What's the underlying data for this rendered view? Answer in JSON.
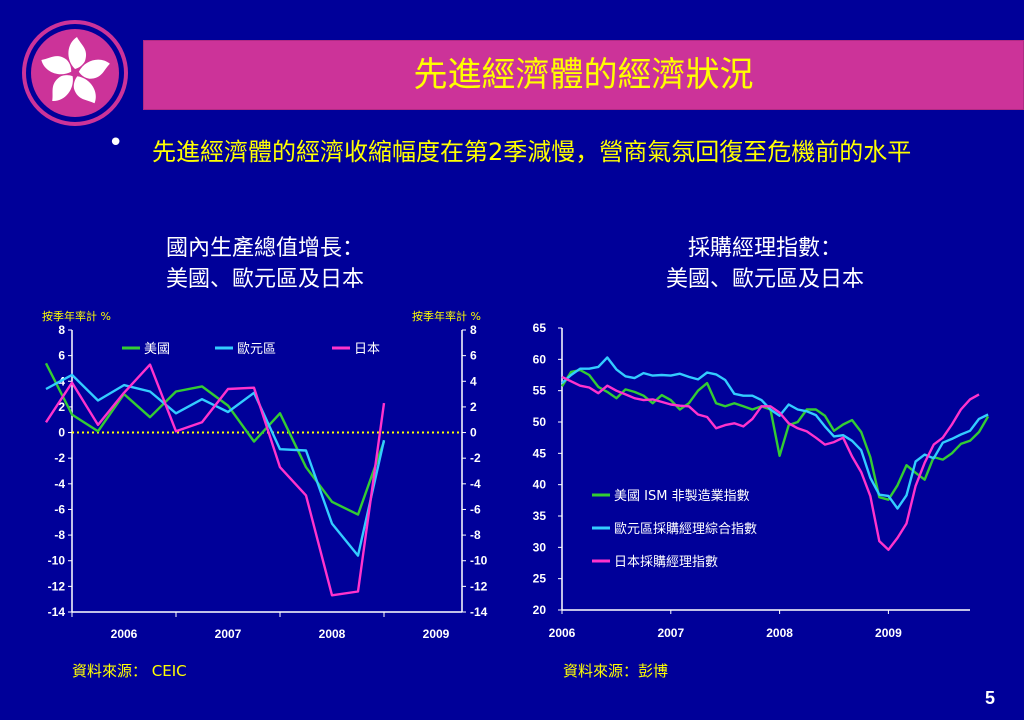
{
  "slide": {
    "title": "先進經濟體的經濟狀況",
    "bullet": "先進經濟體的經濟收縮幅度在第2季減慢，營商氣氛回復至危機前的水平",
    "page_number": "5"
  },
  "colors": {
    "background": "#000099",
    "title_bar": "#cc3399",
    "title_text": "#ffff00",
    "us": "#33cc33",
    "euro": "#33ccff",
    "japan": "#ff33cc"
  },
  "logo": {
    "icon": "bauhinia-flower-icon"
  },
  "left_chart": {
    "title_line1": "國內生產總值增長：",
    "title_line2": "美國、歐元區及日本",
    "unit_left": "按季年率計 %",
    "unit_right": "按季年率計 %",
    "source": "資料來源：  CEIC"
  },
  "right_chart": {
    "title_line1": "採購經理指數：",
    "title_line2": "美國、歐元區及日本",
    "source": "資料來源：彭博"
  },
  "chart_data": [
    {
      "type": "line",
      "x_start": 2005.75,
      "x_step": 0.25,
      "xlim": [
        2006,
        2009.75
      ],
      "xticks": [
        "2006",
        "2007",
        "2008",
        "2009"
      ],
      "ylim": [
        -14,
        8
      ],
      "yticks": [
        "8",
        "6",
        "4",
        "2",
        "0",
        "-2",
        "-4",
        "-6",
        "-8",
        "-10",
        "-12",
        "-14"
      ],
      "y2ticks": [
        "8",
        "6",
        "4",
        "2",
        "0",
        "-2",
        "-4",
        "-6",
        "-8",
        "-10",
        "-12",
        "-14"
      ],
      "zero_line": true,
      "legend_position": "top",
      "series": [
        {
          "name": "美國",
          "color": "#33cc33",
          "values": [
            5.4,
            1.4,
            0.1,
            3.0,
            1.2,
            3.2,
            3.6,
            2.1,
            -0.7,
            1.5,
            -2.7,
            -5.4,
            -6.4,
            -0.7
          ]
        },
        {
          "name": "歐元區",
          "color": "#33ccff",
          "values": [
            3.4,
            4.5,
            2.5,
            3.7,
            3.2,
            1.5,
            2.6,
            1.6,
            3.1,
            -1.3,
            -1.4,
            -7.1,
            -9.6,
            -0.6
          ]
        },
        {
          "name": "日本",
          "color": "#ff33cc",
          "values": [
            0.8,
            3.9,
            0.6,
            3.1,
            5.3,
            0.1,
            0.8,
            3.4,
            3.5,
            -2.7,
            -4.9,
            -12.7,
            -12.4,
            2.3
          ]
        }
      ]
    },
    {
      "type": "line",
      "xlim": [
        2006,
        2009.75
      ],
      "xticks": [
        "2006",
        "2007",
        "2008",
        "2009"
      ],
      "ylim": [
        20,
        65
      ],
      "yticks": [
        "65",
        "60",
        "55",
        "50",
        "45",
        "40",
        "35",
        "30",
        "25",
        "20"
      ],
      "legend_position": "lower-right",
      "series": [
        {
          "name": "美國 ISM 非製造業指數",
          "color": "#33cc33",
          "x_start": 2006.0,
          "x_step": 0.08333,
          "values": [
            55.7,
            58.0,
            58.3,
            57.5,
            55.6,
            54.8,
            53.8,
            55.2,
            54.8,
            54.2,
            53.0,
            54.3,
            53.5,
            52.0,
            53.0,
            55.0,
            56.2,
            53.0,
            52.5,
            53.0,
            52.5,
            52.0,
            52.5,
            52.0,
            44.6,
            49.5,
            50.0,
            52.0,
            52.0,
            51.0,
            48.6,
            49.6,
            50.3,
            48.4,
            44.4,
            38.0,
            37.6,
            39.9,
            43.1,
            41.9,
            40.8,
            44.4,
            44.0,
            45.0,
            46.5,
            47.0,
            48.4,
            50.9
          ]
        },
        {
          "name": "歐元區採購經理綜合指數",
          "color": "#33ccff",
          "x_start": 2006.0,
          "x_step": 0.08333,
          "values": [
            56.2,
            57.5,
            58.5,
            58.5,
            58.8,
            60.3,
            58.4,
            57.3,
            57.0,
            57.8,
            57.4,
            57.5,
            57.4,
            57.7,
            57.2,
            56.8,
            57.9,
            57.6,
            56.7,
            54.5,
            54.2,
            54.2,
            53.5,
            52.0,
            51.0,
            52.8,
            52.0,
            51.7,
            51.1,
            49.3,
            47.7,
            47.9,
            47.0,
            45.5,
            41.1,
            38.4,
            38.2,
            36.2,
            38.3,
            43.7,
            44.8,
            44.2,
            46.7,
            47.3,
            48.0,
            48.6,
            50.5,
            51.2
          ]
        },
        {
          "name": "日本採購經理指數",
          "color": "#ff33cc",
          "x_start": 2006.0,
          "x_step": 0.08333,
          "values": [
            57.2,
            56.5,
            55.8,
            55.5,
            54.6,
            55.8,
            55.0,
            54.4,
            53.8,
            53.5,
            53.6,
            53.2,
            52.8,
            52.6,
            52.5,
            51.2,
            50.8,
            49.0,
            49.5,
            49.8,
            49.3,
            50.5,
            52.5,
            52.5,
            51.5,
            49.8,
            49.0,
            48.5,
            47.5,
            46.4,
            46.8,
            47.5,
            44.5,
            42.0,
            38.2,
            31.0,
            29.6,
            31.5,
            33.8,
            39.8,
            43.5,
            46.4,
            47.5,
            49.6,
            52.0,
            53.6,
            54.4
          ]
        }
      ]
    }
  ]
}
